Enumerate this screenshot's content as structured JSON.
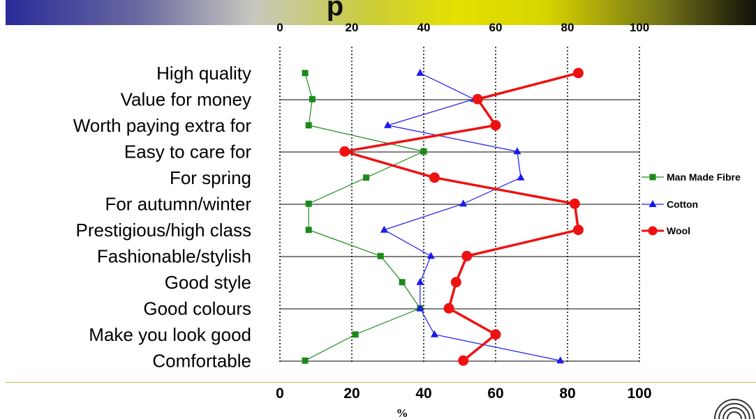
{
  "chart_data": {
    "type": "line",
    "orientation": "horizontal",
    "title": "",
    "xlabel": "%",
    "xlim": [
      0,
      100
    ],
    "xticks": [
      "0",
      "20",
      "40",
      "60",
      "80",
      "100"
    ],
    "categories": [
      "High quality",
      "Value for money",
      "Worth paying extra for",
      "Easy to care for",
      "For spring",
      "For autumn/winter",
      "Prestigious/high class",
      "Fashionable/stylish",
      "Good style",
      "Good colours",
      "Make you look good",
      "Comfortable"
    ],
    "series": [
      {
        "name": "Man Made Fibre",
        "color": "#1a8a1a",
        "marker": "square",
        "values": [
          7,
          9,
          8,
          40,
          24,
          8,
          8,
          28,
          34,
          39,
          21,
          7
        ]
      },
      {
        "name": "Cotton",
        "color": "#1a1aee",
        "marker": "triangle",
        "values": [
          39,
          54,
          30,
          66,
          67,
          51,
          29,
          42,
          39,
          39,
          43,
          78
        ]
      },
      {
        "name": "Wool",
        "color": "#ee1111",
        "marker": "circle",
        "values": [
          83,
          55,
          60,
          18,
          43,
          82,
          83,
          52,
          49,
          47,
          60,
          51
        ]
      }
    ],
    "legend": "right",
    "grid": true
  },
  "header": {
    "title_fragment": "p"
  }
}
